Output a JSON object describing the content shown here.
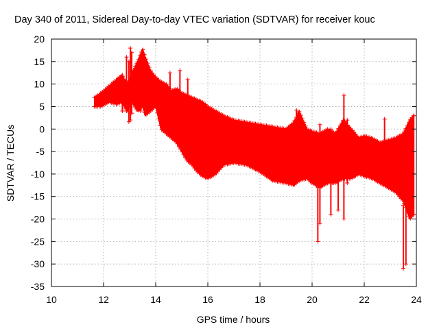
{
  "chart_data": {
    "type": "scatter",
    "title": "Day 340 of 2011, Sidereal Day-to-day VTEC variation (SDTVAR) for receiver kouc",
    "xlabel": "GPS time / hours",
    "ylabel": "SDTVAR / TECUs",
    "xlim": [
      10,
      24
    ],
    "ylim": [
      -35,
      20
    ],
    "xticks": [
      10,
      12,
      14,
      16,
      18,
      20,
      22,
      24
    ],
    "yticks": [
      20,
      15,
      10,
      5,
      0,
      -5,
      -10,
      -15,
      -20,
      -25,
      -30,
      -35
    ],
    "grid": true,
    "marker": "+",
    "color": "#ff0000",
    "envelope": {
      "description": "dense band of '+' markers between upper and lower bounds",
      "x": [
        11.65,
        11.9,
        12.2,
        12.5,
        12.7,
        12.9,
        13.0,
        13.1,
        13.3,
        13.5,
        13.6,
        13.8,
        14.0,
        14.2,
        14.4,
        14.6,
        14.8,
        15.0,
        15.2,
        15.4,
        15.6,
        15.8,
        16.0,
        16.3,
        16.6,
        17.0,
        17.5,
        18.0,
        18.5,
        19.0,
        19.3,
        19.5,
        19.8,
        20.0,
        20.3,
        20.6,
        20.9,
        21.2,
        21.5,
        21.8,
        22.0,
        22.3,
        22.6,
        22.9,
        23.2,
        23.5,
        23.75,
        23.9
      ],
      "upper": [
        7,
        8,
        9.5,
        11,
        12,
        10,
        11,
        12.5,
        15,
        17.8,
        16,
        13,
        11.5,
        10.5,
        10,
        8.5,
        9,
        8,
        7.5,
        7,
        6.5,
        6,
        5,
        4,
        3,
        2,
        1.5,
        1,
        0.5,
        0,
        1.5,
        4,
        0,
        -0.5,
        -1,
        0,
        -1,
        2,
        0,
        -2,
        -1.5,
        -2,
        -3,
        -2.5,
        -2,
        -1,
        2,
        3
      ],
      "lower": [
        5,
        5,
        6,
        5.5,
        6,
        4,
        5,
        6,
        4,
        5,
        3,
        4,
        5,
        0,
        -1,
        -2,
        -3,
        -5,
        -7,
        -8,
        -9.5,
        -10.5,
        -11,
        -10,
        -8,
        -7.5,
        -8,
        -9.5,
        -11.5,
        -12,
        -12.5,
        -11.5,
        -11,
        -12,
        -13,
        -12,
        -12,
        -11,
        -11,
        -10,
        -10.5,
        -11,
        -12,
        -13,
        -14,
        -16,
        -20,
        -19
      ]
    },
    "spikes": [
      {
        "x": 12.72,
        "low": 4,
        "high": 12
      },
      {
        "x": 12.88,
        "low": 4,
        "high": 16
      },
      {
        "x": 12.97,
        "low": 1.6,
        "high": 15
      },
      {
        "x": 13.03,
        "low": 2,
        "high": 18
      },
      {
        "x": 13.08,
        "low": 3.5,
        "high": 17
      },
      {
        "x": 13.42,
        "low": 4,
        "high": 15.5
      },
      {
        "x": 14.55,
        "low": 3,
        "high": 12.5
      },
      {
        "x": 14.93,
        "low": 2,
        "high": 13
      },
      {
        "x": 15.23,
        "low": 5,
        "high": 11
      },
      {
        "x": 15.75,
        "low": 0,
        "high": 3
      },
      {
        "x": 19.4,
        "low": -2,
        "high": 4.2
      },
      {
        "x": 20.22,
        "low": -25,
        "high": -13
      },
      {
        "x": 20.3,
        "low": -21,
        "high": 1
      },
      {
        "x": 20.72,
        "low": -19,
        "high": 0
      },
      {
        "x": 21.0,
        "low": -18,
        "high": -11
      },
      {
        "x": 21.22,
        "low": -20,
        "high": 7.5
      },
      {
        "x": 21.35,
        "low": -12,
        "high": 2
      },
      {
        "x": 22.78,
        "low": -9,
        "high": 2.2
      },
      {
        "x": 23.5,
        "low": -31,
        "high": -17
      },
      {
        "x": 23.6,
        "low": -30,
        "high": -17
      },
      {
        "x": 23.9,
        "low": -19,
        "high": 3
      }
    ]
  }
}
